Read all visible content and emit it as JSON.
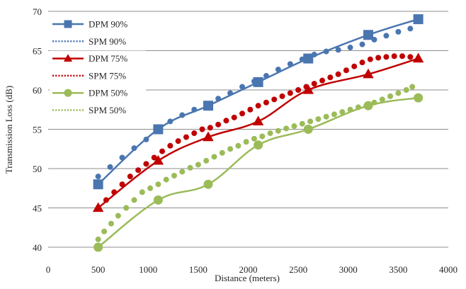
{
  "chart_data": {
    "type": "line",
    "title": "",
    "xlabel": "Distance (meters)",
    "ylabel": "Transmission Loss (dB)",
    "xlim": [
      0,
      4000
    ],
    "ylim": [
      40,
      70
    ],
    "xticks": [
      0,
      500,
      1000,
      1500,
      2000,
      2500,
      3000,
      3500,
      4000
    ],
    "yticks": [
      40,
      45,
      50,
      55,
      60,
      65,
      70
    ],
    "grid": "horizontal",
    "legend_position": "top-left",
    "series": [
      {
        "name": "DPM 90%",
        "style": "solid",
        "marker": "square",
        "color": "#4a76b0",
        "points": [
          [
            500,
            48
          ],
          [
            1100,
            55
          ],
          [
            1600,
            58
          ],
          [
            2100,
            61
          ],
          [
            2600,
            64
          ],
          [
            3200,
            67
          ],
          [
            3700,
            69
          ]
        ]
      },
      {
        "name": "SPM 90%",
        "style": "dotted",
        "marker": "circle",
        "color": "#4a76b0",
        "points": [
          [
            500,
            49
          ],
          [
            620,
            50.2
          ],
          [
            740,
            51.4
          ],
          [
            860,
            52.6
          ],
          [
            980,
            53.7
          ],
          [
            1100,
            54.8
          ],
          [
            1220,
            56.0
          ],
          [
            1340,
            56.8
          ],
          [
            1460,
            57.5
          ],
          [
            1580,
            58.2
          ],
          [
            1700,
            58.9
          ],
          [
            1820,
            59.6
          ],
          [
            1940,
            60.4
          ],
          [
            2060,
            61.1
          ],
          [
            2180,
            61.8
          ],
          [
            2300,
            62.6
          ],
          [
            2420,
            63.3
          ],
          [
            2540,
            63.9
          ],
          [
            2660,
            64.5
          ],
          [
            2780,
            64.9
          ],
          [
            2900,
            65.1
          ],
          [
            3020,
            65.4
          ],
          [
            3140,
            65.8
          ],
          [
            3260,
            66.4
          ],
          [
            3380,
            66.9
          ],
          [
            3500,
            67.4
          ],
          [
            3620,
            67.8
          ]
        ]
      },
      {
        "name": "DPM 75%",
        "style": "solid",
        "marker": "triangle",
        "color": "#c00000",
        "points": [
          [
            500,
            45
          ],
          [
            1100,
            51
          ],
          [
            1600,
            54
          ],
          [
            2100,
            56
          ],
          [
            2600,
            60
          ],
          [
            3200,
            62
          ],
          [
            3700,
            64
          ]
        ]
      },
      {
        "name": "SPM 75%",
        "style": "dotted",
        "marker": "circle",
        "color": "#c00000",
        "points": [
          [
            500,
            45.0
          ],
          [
            580,
            46.0
          ],
          [
            660,
            47.0
          ],
          [
            740,
            48.0
          ],
          [
            820,
            49.0
          ],
          [
            900,
            49.8
          ],
          [
            980,
            50.6
          ],
          [
            1060,
            51.4
          ],
          [
            1140,
            52.2
          ],
          [
            1220,
            52.9
          ],
          [
            1300,
            53.5
          ],
          [
            1380,
            54.0
          ],
          [
            1460,
            54.5
          ],
          [
            1540,
            55.0
          ],
          [
            1620,
            55.2
          ],
          [
            1700,
            55.6
          ],
          [
            1780,
            56.1
          ],
          [
            1860,
            56.5
          ],
          [
            1940,
            57.0
          ],
          [
            2020,
            57.5
          ],
          [
            2100,
            58.0
          ],
          [
            2180,
            58.4
          ],
          [
            2260,
            58.8
          ],
          [
            2340,
            59.2
          ],
          [
            2420,
            59.6
          ],
          [
            2500,
            60.0
          ],
          [
            2580,
            60.4
          ],
          [
            2660,
            60.8
          ],
          [
            2740,
            61.2
          ],
          [
            2820,
            61.6
          ],
          [
            2900,
            62.0
          ],
          [
            2980,
            62.5
          ],
          [
            3060,
            63.0
          ],
          [
            3140,
            63.5
          ],
          [
            3220,
            63.9
          ],
          [
            3300,
            64.1
          ],
          [
            3380,
            64.2
          ],
          [
            3460,
            64.3
          ],
          [
            3540,
            64.3
          ],
          [
            3620,
            64.2
          ],
          [
            3700,
            64.0
          ]
        ]
      },
      {
        "name": "DPM 50%",
        "style": "solid",
        "marker": "circle",
        "color": "#9bbb59",
        "points": [
          [
            500,
            40
          ],
          [
            1100,
            46
          ],
          [
            1600,
            48
          ],
          [
            2100,
            53
          ],
          [
            2600,
            55
          ],
          [
            3200,
            58
          ],
          [
            3700,
            59
          ]
        ]
      },
      {
        "name": "SPM 50%",
        "style": "dotted",
        "marker": "circle",
        "color": "#9bbb59",
        "points": [
          [
            500,
            41.0
          ],
          [
            560,
            42.0
          ],
          [
            630,
            43.0
          ],
          [
            700,
            44.0
          ],
          [
            780,
            45.0
          ],
          [
            860,
            46.0
          ],
          [
            940,
            47.0
          ],
          [
            1020,
            47.5
          ],
          [
            1100,
            48.0
          ],
          [
            1180,
            48.6
          ],
          [
            1260,
            49.1
          ],
          [
            1340,
            49.6
          ],
          [
            1420,
            50.1
          ],
          [
            1500,
            50.5
          ],
          [
            1580,
            51.0
          ],
          [
            1660,
            51.5
          ],
          [
            1740,
            52.0
          ],
          [
            1820,
            52.5
          ],
          [
            1900,
            52.9
          ],
          [
            1980,
            53.4
          ],
          [
            2060,
            53.8
          ],
          [
            2140,
            54.1
          ],
          [
            2220,
            54.5
          ],
          [
            2300,
            54.8
          ],
          [
            2380,
            55.1
          ],
          [
            2460,
            55.4
          ],
          [
            2540,
            55.7
          ],
          [
            2620,
            56.0
          ],
          [
            2700,
            56.3
          ],
          [
            2780,
            56.6
          ],
          [
            2860,
            56.9
          ],
          [
            2940,
            57.2
          ],
          [
            3020,
            57.5
          ],
          [
            3100,
            57.8
          ],
          [
            3180,
            58.0
          ],
          [
            3260,
            58.4
          ],
          [
            3340,
            58.8
          ],
          [
            3420,
            59.2
          ],
          [
            3500,
            59.6
          ],
          [
            3580,
            60.0
          ],
          [
            3640,
            60.4
          ]
        ]
      }
    ]
  }
}
